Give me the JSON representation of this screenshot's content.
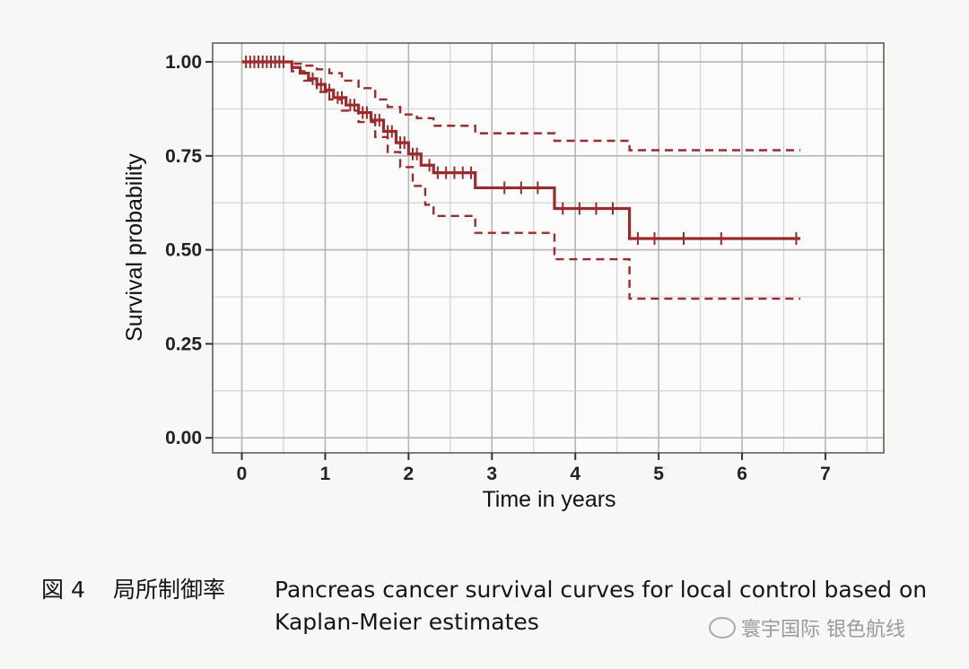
{
  "chart_data": {
    "type": "line",
    "xlabel": "Time in years",
    "ylabel": "Survival probability",
    "xlim": [
      -0.35,
      7.7
    ],
    "ylim": [
      -0.04,
      1.05
    ],
    "x_ticks": [
      "0",
      "1",
      "2",
      "3",
      "4",
      "5",
      "6",
      "7"
    ],
    "y_ticks": [
      "0.00",
      "0.25",
      "0.50",
      "0.75",
      "1.00"
    ],
    "grid": true,
    "series": [
      {
        "style": "solid-step",
        "color": "#9b2a2a",
        "x": [
          0,
          0.6,
          0.7,
          0.8,
          0.9,
          1.0,
          1.1,
          1.25,
          1.4,
          1.55,
          1.7,
          1.85,
          2.0,
          2.15,
          2.3,
          2.8,
          3.75,
          4.65,
          6.7
        ],
        "y": [
          1.0,
          0.985,
          0.97,
          0.955,
          0.94,
          0.925,
          0.905,
          0.885,
          0.865,
          0.845,
          0.815,
          0.785,
          0.755,
          0.725,
          0.705,
          0.665,
          0.61,
          0.53,
          0.53
        ],
        "censor_x": [
          0.05,
          0.1,
          0.15,
          0.2,
          0.25,
          0.3,
          0.35,
          0.4,
          0.45,
          0.5,
          0.85,
          0.95,
          1.05,
          1.15,
          1.2,
          1.3,
          1.35,
          1.45,
          1.5,
          1.6,
          1.65,
          1.75,
          1.8,
          1.9,
          1.95,
          2.05,
          2.1,
          2.25,
          2.35,
          2.45,
          2.55,
          2.65,
          2.75,
          3.15,
          3.35,
          3.55,
          3.85,
          4.05,
          4.25,
          4.45,
          4.75,
          4.95,
          5.3,
          5.75,
          6.65
        ]
      },
      {
        "style": "dashed-upper",
        "color": "#9b2a2a",
        "x": [
          0,
          0.6,
          0.75,
          0.9,
          1.05,
          1.2,
          1.4,
          1.6,
          1.75,
          1.9,
          2.1,
          2.3,
          2.8,
          3.75,
          4.65,
          6.7
        ],
        "y": [
          1.0,
          0.995,
          0.99,
          0.98,
          0.97,
          0.95,
          0.93,
          0.9,
          0.88,
          0.86,
          0.85,
          0.83,
          0.81,
          0.79,
          0.765,
          0.765
        ]
      },
      {
        "style": "dashed-lower",
        "color": "#9b2a2a",
        "x": [
          0,
          0.6,
          0.75,
          0.9,
          1.05,
          1.2,
          1.4,
          1.6,
          1.75,
          1.9,
          2.05,
          2.2,
          2.3,
          2.8,
          3.75,
          4.65,
          6.7
        ],
        "y": [
          1.0,
          0.975,
          0.95,
          0.92,
          0.9,
          0.87,
          0.84,
          0.8,
          0.76,
          0.72,
          0.67,
          0.62,
          0.59,
          0.545,
          0.475,
          0.37,
          0.37
        ]
      }
    ]
  },
  "caption": {
    "figure_label": "図 4",
    "title_cn": "局所制御率",
    "text_line1": "Pancreas cancer survival curves for local control based on",
    "text_line2": "Kaplan-Meier estimates"
  },
  "watermark": {
    "text": "寰宇国际 银色航线",
    "icon": "wechat-icon"
  }
}
